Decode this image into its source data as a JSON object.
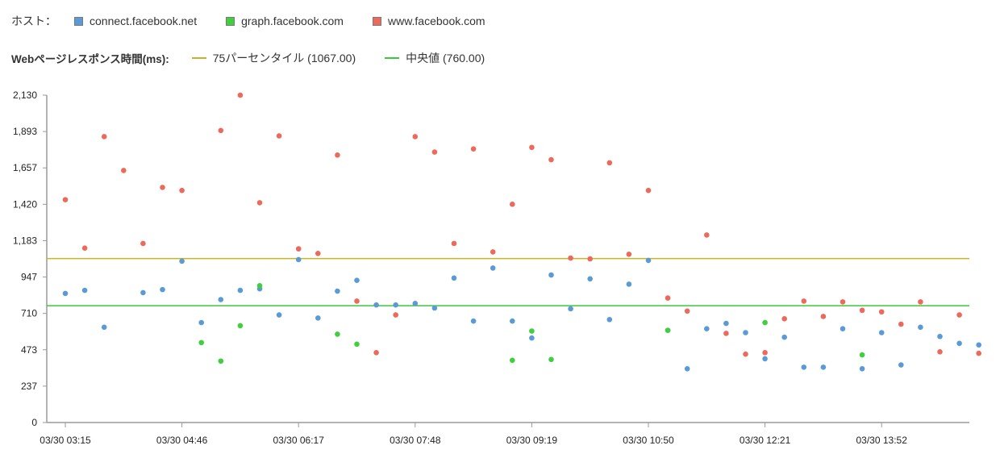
{
  "legend": {
    "hosts_label": "ホスト：",
    "hosts": [
      {
        "name": "connect.facebook.net",
        "color": "#5b9bd5"
      },
      {
        "name": "graph.facebook.com",
        "color": "#3fcf3f"
      },
      {
        "name": "www.facebook.com",
        "color": "#ec6a5c"
      }
    ],
    "lines_label": "Webページレスポンス時間(ms):",
    "lines": [
      {
        "name": "75パーセンタイル (1067.00)",
        "color": "#c8b428"
      },
      {
        "name": "中央値 (760.00)",
        "color": "#3cc83c"
      }
    ]
  },
  "chart_data": {
    "type": "scatter",
    "title": "",
    "xlabel": "",
    "ylabel": "",
    "ylim": [
      0,
      2130
    ],
    "yticks": [
      "0",
      "237",
      "473",
      "710",
      "947",
      "1,183",
      "1,420",
      "1,657",
      "1,893",
      "2,130"
    ],
    "xticks": [
      "03/30 03:15",
      "03/30 04:46",
      "03/30 06:17",
      "03/30 07:48",
      "03/30 09:19",
      "03/30 10:50",
      "03/30 12:21",
      "03/30 13:52"
    ],
    "x_sequence": [
      "03/30 03:15",
      "03/30 03:30",
      "03/30 03:45",
      "03/30 04:00",
      "03/30 04:15",
      "03/30 04:30",
      "03/30 04:45",
      "03/30 05:00",
      "03/30 05:15",
      "03/30 05:30",
      "03/30 05:45",
      "03/30 06:00",
      "03/30 06:15",
      "03/30 06:30",
      "03/30 06:45",
      "03/30 07:00",
      "03/30 07:15",
      "03/30 07:30",
      "03/30 07:45",
      "03/30 08:00",
      "03/30 08:15",
      "03/30 08:30",
      "03/30 08:45",
      "03/30 09:00",
      "03/30 09:15",
      "03/30 09:30",
      "03/30 09:45",
      "03/30 10:00",
      "03/30 10:15",
      "03/30 10:30",
      "03/30 10:45",
      "03/30 11:00",
      "03/30 11:15",
      "03/30 11:30",
      "03/30 11:45",
      "03/30 12:00",
      "03/30 12:15",
      "03/30 12:30",
      "03/30 12:45",
      "03/30 13:00",
      "03/30 13:15",
      "03/30 13:30",
      "03/30 13:45",
      "03/30 14:00",
      "03/30 14:15",
      "03/30 14:30",
      "03/30 14:45",
      "03/30 15:00"
    ],
    "reference_lines": [
      {
        "name": "75パーセンタイル",
        "value": 1067,
        "color": "#c8b428"
      },
      {
        "name": "中央値",
        "value": 760,
        "color": "#3cc83c"
      }
    ],
    "series": [
      {
        "name": "connect.facebook.net",
        "color": "#5b9bd5",
        "points": [
          [
            1,
            840
          ],
          [
            2,
            860
          ],
          [
            3,
            620
          ],
          [
            5,
            845
          ],
          [
            6,
            865
          ],
          [
            7,
            1050
          ],
          [
            8,
            650
          ],
          [
            9,
            800
          ],
          [
            10,
            860
          ],
          [
            11,
            870
          ],
          [
            12,
            700
          ],
          [
            13,
            1060
          ],
          [
            14,
            680
          ],
          [
            15,
            855
          ],
          [
            16,
            925
          ],
          [
            17,
            765
          ],
          [
            18,
            765
          ],
          [
            19,
            775
          ],
          [
            20,
            745
          ],
          [
            21,
            940
          ],
          [
            22,
            660
          ],
          [
            23,
            1005
          ],
          [
            24,
            660
          ],
          [
            25,
            550
          ],
          [
            26,
            960
          ],
          [
            27,
            740
          ],
          [
            28,
            935
          ],
          [
            29,
            670
          ],
          [
            30,
            900
          ],
          [
            31,
            1055
          ],
          [
            32,
            600
          ],
          [
            33,
            350
          ],
          [
            34,
            610
          ],
          [
            35,
            645
          ],
          [
            36,
            585
          ],
          [
            37,
            415
          ],
          [
            38,
            555
          ],
          [
            39,
            360
          ],
          [
            40,
            360
          ],
          [
            41,
            610
          ],
          [
            42,
            350
          ],
          [
            43,
            585
          ],
          [
            44,
            375
          ],
          [
            45,
            620
          ],
          [
            46,
            560
          ],
          [
            47,
            515
          ],
          [
            48,
            505
          ]
        ]
      },
      {
        "name": "graph.facebook.com",
        "color": "#3fcf3f",
        "points": [
          [
            8,
            520
          ],
          [
            9,
            400
          ],
          [
            10,
            630
          ],
          [
            11,
            890
          ],
          [
            15,
            575
          ],
          [
            16,
            510
          ],
          [
            24,
            405
          ],
          [
            25,
            595
          ],
          [
            26,
            410
          ],
          [
            32,
            600
          ],
          [
            37,
            650
          ],
          [
            42,
            440
          ]
        ]
      },
      {
        "name": "www.facebook.com",
        "color": "#ec6a5c",
        "points": [
          [
            1,
            1450
          ],
          [
            2,
            1135
          ],
          [
            3,
            1860
          ],
          [
            4,
            1640
          ],
          [
            5,
            1165
          ],
          [
            6,
            1530
          ],
          [
            7,
            1510
          ],
          [
            9,
            1900
          ],
          [
            10,
            2130
          ],
          [
            11,
            1430
          ],
          [
            12,
            1865
          ],
          [
            13,
            1130
          ],
          [
            14,
            1100
          ],
          [
            15,
            1740
          ],
          [
            16,
            790
          ],
          [
            17,
            455
          ],
          [
            18,
            700
          ],
          [
            19,
            1860
          ],
          [
            20,
            1760
          ],
          [
            21,
            1165
          ],
          [
            22,
            1780
          ],
          [
            23,
            1110
          ],
          [
            24,
            1420
          ],
          [
            25,
            1790
          ],
          [
            26,
            1710
          ],
          [
            27,
            1070
          ],
          [
            28,
            1065
          ],
          [
            29,
            1690
          ],
          [
            30,
            1095
          ],
          [
            31,
            1510
          ],
          [
            32,
            810
          ],
          [
            33,
            725
          ],
          [
            34,
            1220
          ],
          [
            35,
            580
          ],
          [
            36,
            445
          ],
          [
            37,
            455
          ],
          [
            38,
            675
          ],
          [
            39,
            790
          ],
          [
            40,
            690
          ],
          [
            41,
            785
          ],
          [
            42,
            730
          ],
          [
            43,
            720
          ],
          [
            44,
            640
          ],
          [
            45,
            785
          ],
          [
            46,
            460
          ],
          [
            47,
            700
          ],
          [
            48,
            450
          ]
        ]
      }
    ]
  }
}
